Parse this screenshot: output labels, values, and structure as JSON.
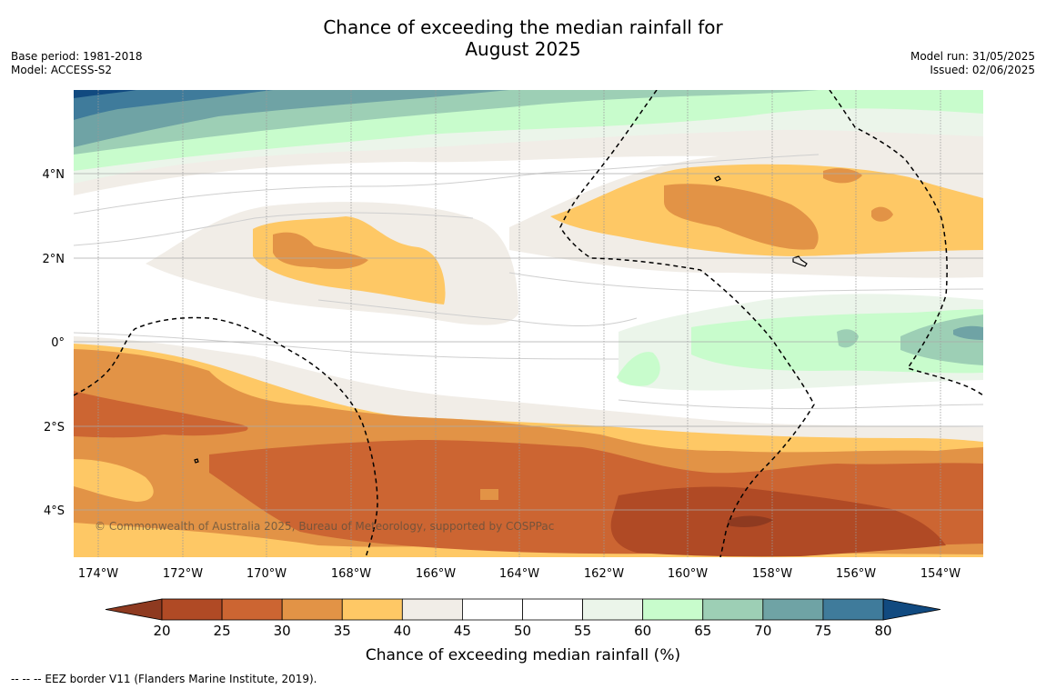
{
  "title_line1": "Chance of exceeding the median rainfall for",
  "title_line2": "August 2025",
  "meta_left": {
    "base_period": "Base period: 1981-2018",
    "model": "Model: ACCESS-S2"
  },
  "meta_right": {
    "model_run": "Model run: 31/05/2025",
    "issued": "Issued: 02/06/2025"
  },
  "copyright": "© Commonwealth of Australia 2025, Bureau of Meteorology, supported by COSPPac",
  "lat_labels": [
    "4°N",
    "2°N",
    "0°",
    "2°S",
    "4°S"
  ],
  "lon_labels": [
    "174°W",
    "172°W",
    "170°W",
    "168°W",
    "166°W",
    "164°W",
    "162°W",
    "160°W",
    "158°W",
    "156°W",
    "154°W"
  ],
  "colorbar": {
    "ticks": [
      "20",
      "25",
      "30",
      "35",
      "40",
      "45",
      "50",
      "55",
      "60",
      "65",
      "70",
      "75",
      "80"
    ],
    "under_color": "#8e3a20",
    "over_color": "#114a80",
    "colors": [
      "#b04a25",
      "#cc6532",
      "#e29346",
      "#fec865",
      "#f1ede7",
      "#ffffff",
      "#ffffff",
      "#ebf5ea",
      "#c8fccc",
      "#9dcfb5",
      "#6fa3a5",
      "#3f7b9b"
    ],
    "label": "Chance of exceeding median rainfall (%)"
  },
  "footer": "--  --  -- EEZ border V11 (Flanders Marine Institute, 2019)."
}
